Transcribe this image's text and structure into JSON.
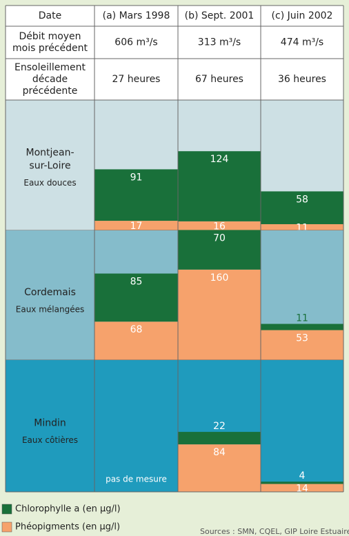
{
  "header": [
    "Date",
    "(a) Mars 1998",
    "(b) Sept. 2001",
    "(c) Juin 2002"
  ],
  "rows": [
    {
      "label": [
        "Débit moyen",
        "mois précédent"
      ],
      "cells": [
        "606 m³/s",
        "313 m³/s",
        "474 m³/s"
      ]
    },
    {
      "label": [
        "Ensoleillement",
        "décade",
        "précédente"
      ],
      "cells": [
        "27 heures",
        "67 heures",
        "36 heures"
      ]
    }
  ],
  "regions": [
    {
      "name": [
        "Montjean-",
        "sur-Loire"
      ],
      "subtitle": "Eaux douces",
      "color": "#cde0e4",
      "chlorophylle": [
        91,
        124,
        58
      ],
      "pheopigments": [
        17,
        16,
        11
      ]
    },
    {
      "name": [
        "Cordemais"
      ],
      "subtitle": "Eaux mélangées",
      "color": "#85bccb",
      "chlorophylle": [
        85,
        70,
        11
      ],
      "pheopigments": [
        68,
        160,
        53
      ]
    },
    {
      "name": [
        "Mindin"
      ],
      "subtitle": "Eaux côtières",
      "color": "#1f9bbd",
      "chlorophylle": [
        null,
        22,
        4
      ],
      "pheopigments": [
        null,
        84,
        14
      ],
      "note": "pas de mesure"
    }
  ],
  "legend": [
    {
      "label": "Chlorophylle a (en µg/l)",
      "color": "#19703a"
    },
    {
      "label": "Phéopigments (en µg/l)",
      "color": "#f6a26c"
    }
  ],
  "source": "Sources : SMN, CQEL, GIP Loire Estuaire"
}
